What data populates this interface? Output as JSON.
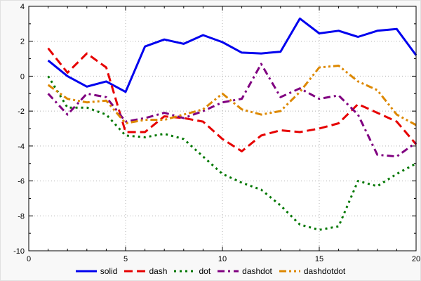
{
  "chart_data": {
    "type": "line",
    "title": "",
    "xlabel": "",
    "ylabel": "",
    "xlim": [
      0,
      20
    ],
    "ylim": [
      -10,
      4
    ],
    "xticks": [
      0,
      5,
      10,
      15,
      20
    ],
    "yticks": [
      -10,
      -8,
      -6,
      -4,
      -2,
      0,
      2,
      4
    ],
    "grid": "dotted",
    "legend_position": "bottom-center",
    "x": [
      1,
      2,
      3,
      4,
      5,
      6,
      7,
      8,
      9,
      10,
      11,
      12,
      13,
      14,
      15,
      16,
      17,
      18,
      19,
      20
    ],
    "series": [
      {
        "name": "solid",
        "color": "#0000ee",
        "dash": "solid",
        "values": [
          0.9,
          0.0,
          -0.6,
          -0.3,
          -0.9,
          1.7,
          2.1,
          1.85,
          2.35,
          1.95,
          1.35,
          1.3,
          1.4,
          3.3,
          2.45,
          2.6,
          2.25,
          2.6,
          2.7,
          1.2
        ]
      },
      {
        "name": "dash",
        "color": "#e60000",
        "dash": "12,6",
        "values": [
          1.6,
          0.2,
          1.3,
          0.5,
          -3.2,
          -3.2,
          -2.3,
          -2.4,
          -2.6,
          -3.6,
          -4.3,
          -3.4,
          -3.1,
          -3.2,
          -3.0,
          -2.7,
          -1.6,
          -2.1,
          -2.6,
          -3.9
        ]
      },
      {
        "name": "dot",
        "color": "#007700",
        "dash": "3,5",
        "values": [
          0.0,
          -1.8,
          -1.8,
          -2.2,
          -3.4,
          -3.5,
          -3.3,
          -3.6,
          -4.6,
          -5.6,
          -6.1,
          -6.5,
          -7.4,
          -8.5,
          -8.8,
          -8.6,
          -6.0,
          -6.3,
          -5.6,
          -5.0
        ]
      },
      {
        "name": "dashdot",
        "color": "#800080",
        "dash": "10,5,3,5",
        "values": [
          -1.0,
          -2.2,
          -1.0,
          -1.2,
          -2.6,
          -2.4,
          -2.1,
          -2.4,
          -2.0,
          -1.5,
          -1.3,
          0.7,
          -1.2,
          -0.7,
          -1.3,
          -1.1,
          -2.2,
          -4.5,
          -4.6,
          -3.8
        ]
      },
      {
        "name": "dashdotdot",
        "color": "#dd8800",
        "dash": "10,4,3,4,3,4",
        "values": [
          -0.5,
          -1.3,
          -1.5,
          -1.4,
          -2.7,
          -2.5,
          -2.5,
          -2.2,
          -1.9,
          -1.0,
          -1.9,
          -2.2,
          -2.0,
          -0.9,
          0.5,
          0.6,
          -0.3,
          -0.8,
          -2.2,
          -2.8
        ]
      }
    ]
  },
  "colors": {
    "background": "#f8f8f8",
    "plot_background": "#ffffff",
    "grid": "#b0b0b0",
    "axis": "#000000"
  }
}
